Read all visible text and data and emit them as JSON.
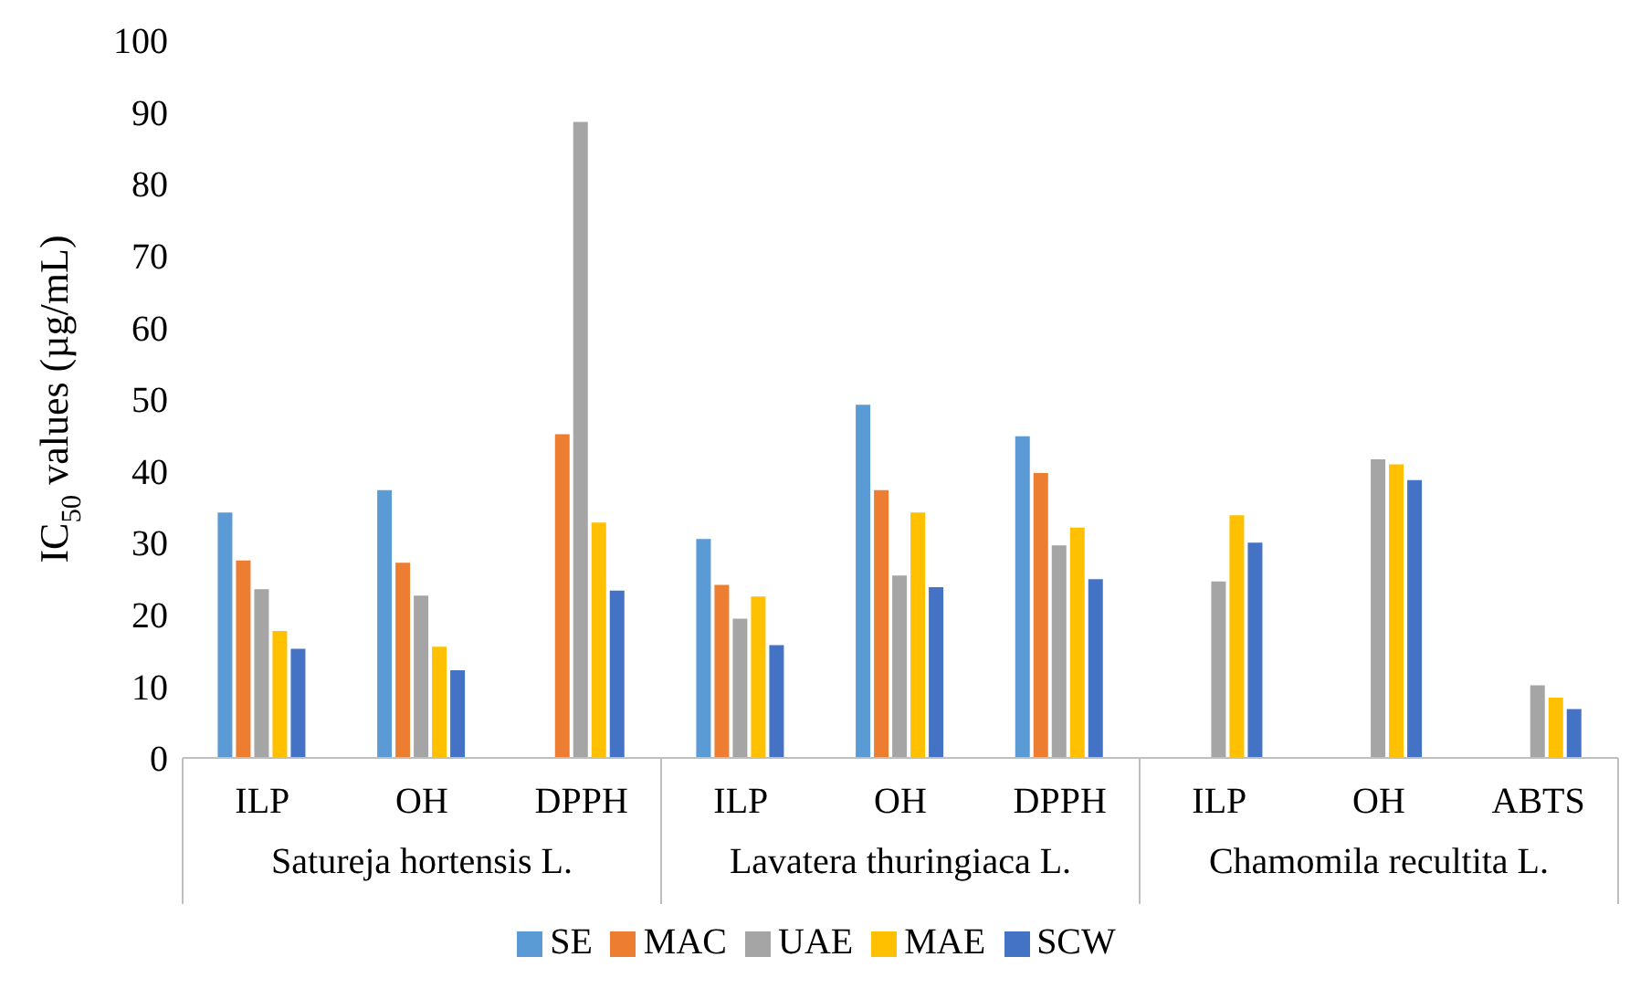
{
  "chart_data": {
    "type": "bar",
    "ylabel": "IC$_{50}$ values (µg/mL)",
    "categories": [
      "ILP",
      "OH",
      "DPPH",
      "ILP",
      "OH",
      "DPPH",
      "ILP",
      "OH",
      "ABTS"
    ],
    "annotations": [
      "Satureja hortensis L.",
      "Lavatera thuringiaca L.",
      "Chamomila recultita L."
    ],
    "series": [
      {
        "name": "SE",
        "color": "#5b9bd5",
        "values": [
          34.2,
          37.3,
          null,
          30.5,
          49.2,
          44.8,
          null,
          null,
          null
        ]
      },
      {
        "name": "MAC",
        "color": "#ed7d31",
        "values": [
          27.5,
          27.2,
          45.1,
          24.1,
          37.3,
          39.7,
          null,
          null,
          null
        ]
      },
      {
        "name": "UAE",
        "color": "#a5a5a5",
        "values": [
          23.5,
          22.6,
          88.6,
          19.4,
          25.4,
          29.6,
          24.6,
          41.6,
          10.1
        ]
      },
      {
        "name": "MAE",
        "color": "#ffc000",
        "values": [
          17.7,
          15.5,
          32.8,
          22.5,
          34.2,
          32.1,
          33.8,
          40.9,
          8.4
        ]
      },
      {
        "name": "SCW",
        "color": "#4472c4",
        "values": [
          15.2,
          12.2,
          23.3,
          15.7,
          23.8,
          24.9,
          30.0,
          38.7,
          6.8
        ]
      }
    ],
    "ylim": [
      0,
      100
    ],
    "yticks": [
      0,
      10,
      20,
      30,
      40,
      50,
      60,
      70,
      80,
      90,
      100
    ],
    "grid": false,
    "legend": "bottom"
  }
}
